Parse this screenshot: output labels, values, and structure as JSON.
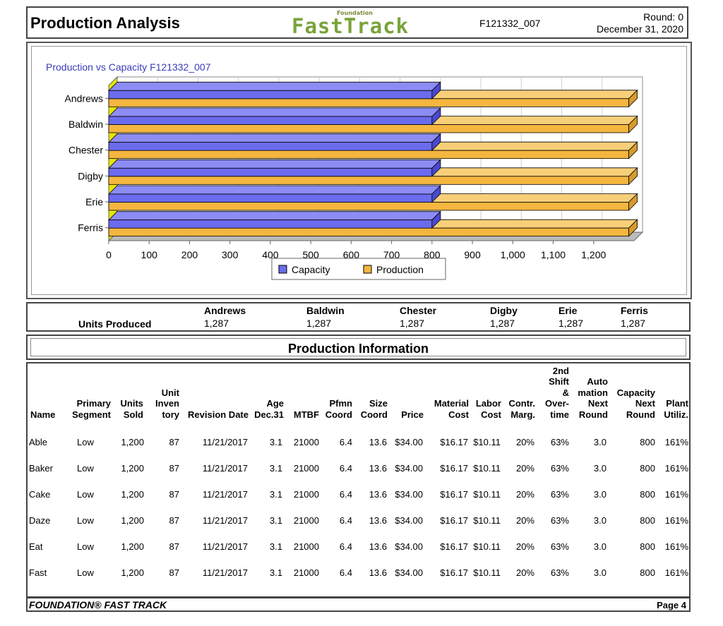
{
  "header": {
    "title": "Production Analysis",
    "logo_small": "Foundation",
    "logo_main": "FastTrack",
    "report_id": "F121332_007",
    "round": "Round: 0",
    "date": "December 31, 2020"
  },
  "chart_data": {
    "type": "bar",
    "orientation": "horizontal",
    "title": "Production vs Capacity F121332_007",
    "categories": [
      "Andrews",
      "Baldwin",
      "Chester",
      "Digby",
      "Erie",
      "Ferris"
    ],
    "series": [
      {
        "name": "Capacity",
        "color": "#6b6bee",
        "values": [
          800,
          800,
          800,
          800,
          800,
          800
        ]
      },
      {
        "name": "Production",
        "color": "#f5b640",
        "values": [
          1287,
          1287,
          1287,
          1287,
          1287,
          1287
        ]
      }
    ],
    "x_ticks": [
      "0",
      "100",
      "200",
      "300",
      "400",
      "500",
      "600",
      "700",
      "800",
      "900",
      "1,000",
      "1,100",
      "1,200"
    ],
    "xlim": [
      0,
      1300
    ],
    "grid": true,
    "legend_position": "bottom-center",
    "three_d": true
  },
  "units_produced": {
    "label": "Units Produced",
    "companies": [
      {
        "name": "Andrews",
        "value": "1,287"
      },
      {
        "name": "Baldwin",
        "value": "1,287"
      },
      {
        "name": "Chester",
        "value": "1,287"
      },
      {
        "name": "Digby",
        "value": "1,287"
      },
      {
        "name": "Erie",
        "value": "1,287"
      },
      {
        "name": "Ferris",
        "value": "1,287"
      }
    ]
  },
  "production_info": {
    "title": "Production Information",
    "headers": [
      [
        "Name"
      ],
      [
        "Primary",
        "Segment"
      ],
      [
        "Units",
        "Sold"
      ],
      [
        "Unit",
        "Inven",
        "tory"
      ],
      [
        "Revision Date"
      ],
      [
        "Age",
        "Dec.31"
      ],
      [
        "MTBF"
      ],
      [
        "Pfmn",
        "Coord"
      ],
      [
        "Size",
        "Coord"
      ],
      [
        "Price"
      ],
      [
        "Material",
        "Cost"
      ],
      [
        "Labor",
        "Cost"
      ],
      [
        "Contr.",
        "Marg."
      ],
      [
        "2nd",
        "Shift",
        "&",
        "Over-",
        "time"
      ],
      [
        "Auto",
        "mation",
        "Next",
        "Round"
      ],
      [
        "Capacity",
        "Next",
        "Round"
      ],
      [
        "Plant",
        "Utiliz."
      ]
    ],
    "rows": [
      [
        "Able",
        "Low",
        "1,200",
        "87",
        "11/21/2017",
        "3.1",
        "21000",
        "6.4",
        "13.6",
        "$34.00",
        "$16.17",
        "$10.11",
        "20%",
        "63%",
        "3.0",
        "800",
        "161%"
      ],
      [
        "Baker",
        "Low",
        "1,200",
        "87",
        "11/21/2017",
        "3.1",
        "21000",
        "6.4",
        "13.6",
        "$34.00",
        "$16.17",
        "$10.11",
        "20%",
        "63%",
        "3.0",
        "800",
        "161%"
      ],
      [
        "Cake",
        "Low",
        "1,200",
        "87",
        "11/21/2017",
        "3.1",
        "21000",
        "6.4",
        "13.6",
        "$34.00",
        "$16.17",
        "$10.11",
        "20%",
        "63%",
        "3.0",
        "800",
        "161%"
      ],
      [
        "Daze",
        "Low",
        "1,200",
        "87",
        "11/21/2017",
        "3.1",
        "21000",
        "6.4",
        "13.6",
        "$34.00",
        "$16.17",
        "$10.11",
        "20%",
        "63%",
        "3.0",
        "800",
        "161%"
      ],
      [
        "Eat",
        "Low",
        "1,200",
        "87",
        "11/21/2017",
        "3.1",
        "21000",
        "6.4",
        "13.6",
        "$34.00",
        "$16.17",
        "$10.11",
        "20%",
        "63%",
        "3.0",
        "800",
        "161%"
      ],
      [
        "Fast",
        "Low",
        "1,200",
        "87",
        "11/21/2017",
        "3.1",
        "21000",
        "6.4",
        "13.6",
        "$34.00",
        "$16.17",
        "$10.11",
        "20%",
        "63%",
        "3.0",
        "800",
        "161%"
      ]
    ]
  },
  "footer": {
    "left": "FOUNDATION® FAST TRACK",
    "right": "Page 4"
  }
}
